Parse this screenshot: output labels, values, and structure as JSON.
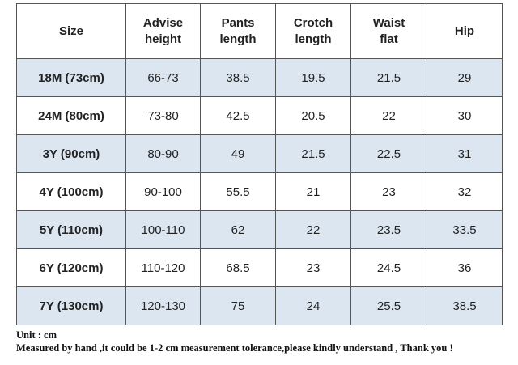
{
  "table": {
    "header": [
      "Size",
      "Advise\nheight",
      "Pants\nlength",
      "Crotch\nlength",
      "Waist\nflat",
      "Hip"
    ],
    "rows": [
      [
        "18M (73cm)",
        "66-73",
        "38.5",
        "19.5",
        "21.5",
        "29"
      ],
      [
        "24M (80cm)",
        "73-80",
        "42.5",
        "20.5",
        "22",
        "30"
      ],
      [
        "3Y (90cm)",
        "80-90",
        "49",
        "21.5",
        "22.5",
        "31"
      ],
      [
        "4Y (100cm)",
        "90-100",
        "55.5",
        "21",
        "23",
        "32"
      ],
      [
        "5Y (110cm)",
        "100-110",
        "62",
        "22",
        "23.5",
        "33.5"
      ],
      [
        "6Y (120cm)",
        "110-120",
        "68.5",
        "23",
        "24.5",
        "36"
      ],
      [
        "7Y (130cm)",
        "120-130",
        "75",
        "24",
        "25.5",
        "38.5"
      ]
    ]
  },
  "notes": [
    "Unit : cm",
    "Measured by hand ,it could be 1-2 cm measurement tolerance,please kindly understand , Thank you !"
  ]
}
